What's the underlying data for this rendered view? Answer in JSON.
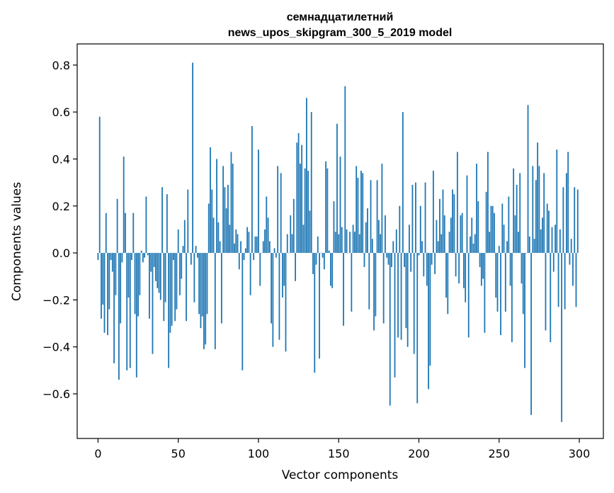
{
  "chart_data": {
    "type": "bar",
    "title_line1": "семнадцатилетний",
    "title_line2": "news_upos_skipgram_300_5_2019 model",
    "xlabel": "Vector components",
    "ylabel": "Components values",
    "xlim": [
      -13,
      315
    ],
    "ylim": [
      -0.79,
      0.89
    ],
    "x_ticks": [
      0,
      50,
      100,
      150,
      200,
      250,
      300
    ],
    "y_ticks": [
      -0.6,
      -0.4,
      -0.2,
      0.0,
      0.2,
      0.4,
      0.6,
      0.8
    ],
    "y_tick_labels": [
      "−0.6",
      "−0.4",
      "−0.2",
      "0.0",
      "0.2",
      "0.4",
      "0.6",
      "0.8"
    ],
    "x_tick_labels": [
      "0",
      "50",
      "100",
      "150",
      "200",
      "250",
      "300"
    ],
    "grid": false,
    "bar_color": "#1f77b4",
    "values": [
      -0.03,
      0.58,
      -0.28,
      -0.22,
      -0.34,
      0.17,
      -0.35,
      -0.24,
      -0.03,
      -0.08,
      -0.47,
      -0.18,
      0.23,
      -0.54,
      -0.3,
      -0.04,
      0.41,
      0.17,
      -0.5,
      -0.19,
      -0.49,
      -0.03,
      0.17,
      -0.26,
      -0.53,
      -0.27,
      -0.18,
      0.01,
      -0.04,
      -0.02,
      0.24,
      -0.01,
      -0.28,
      -0.08,
      -0.43,
      -0.06,
      -0.12,
      -0.15,
      -0.17,
      -0.2,
      0.28,
      -0.29,
      -0.21,
      0.25,
      -0.49,
      -0.34,
      -0.31,
      -0.03,
      -0.29,
      -0.24,
      0.1,
      -0.18,
      -0.11,
      0.03,
      0.14,
      -0.29,
      0.27,
      0.0,
      -0.05,
      0.81,
      -0.21,
      0.03,
      -0.02,
      -0.26,
      -0.32,
      -0.27,
      -0.41,
      -0.39,
      -0.26,
      0.21,
      0.45,
      0.27,
      0.15,
      -0.41,
      0.4,
      0.13,
      0.05,
      -0.3,
      0.37,
      0.28,
      0.19,
      0.29,
      0.12,
      0.43,
      0.38,
      0.04,
      0.1,
      0.08,
      -0.07,
      0.05,
      -0.5,
      -0.03,
      0.02,
      0.11,
      0.09,
      -0.18,
      0.54,
      -0.03,
      0.07,
      0.07,
      0.44,
      -0.14,
      0.0,
      0.05,
      0.1,
      0.24,
      0.15,
      0.05,
      -0.3,
      -0.4,
      0.02,
      -0.02,
      0.37,
      -0.37,
      0.34,
      -0.19,
      -0.14,
      -0.42,
      0.08,
      0.0,
      0.16,
      0.08,
      0.23,
      -0.12,
      0.47,
      0.51,
      0.38,
      0.46,
      0.12,
      0.36,
      0.66,
      0.35,
      0.18,
      0.6,
      -0.09,
      -0.51,
      -0.05,
      0.07,
      -0.45,
      0.0,
      -0.02,
      -0.07,
      0.39,
      0.36,
      0.01,
      -0.14,
      -0.15,
      0.22,
      0.09,
      0.55,
      0.08,
      0.41,
      0.11,
      -0.31,
      0.71,
      0.1,
      0.0,
      0.09,
      -0.25,
      0.12,
      0.09,
      0.37,
      0.32,
      0.08,
      0.35,
      0.34,
      -0.06,
      0.13,
      0.19,
      -0.24,
      0.31,
      0.06,
      -0.33,
      -0.27,
      0.31,
      0.14,
      0.08,
      0.38,
      -0.3,
      0.16,
      -0.02,
      -0.05,
      -0.65,
      -0.06,
      0.05,
      -0.53,
      0.1,
      -0.36,
      0.2,
      -0.37,
      0.6,
      -0.06,
      -0.32,
      -0.4,
      0.12,
      -0.08,
      0.29,
      -0.43,
      0.3,
      -0.64,
      -0.01,
      0.2,
      0.05,
      -0.1,
      0.3,
      -0.14,
      -0.58,
      -0.48,
      -0.05,
      0.35,
      -0.09,
      0.14,
      0.05,
      0.23,
      0.08,
      0.27,
      0.16,
      -0.19,
      -0.26,
      0.09,
      0.15,
      0.27,
      0.25,
      -0.1,
      0.43,
      -0.13,
      0.16,
      0.17,
      -0.15,
      -0.21,
      0.33,
      -0.36,
      0.07,
      0.15,
      0.04,
      0.08,
      0.38,
      0.22,
      -0.06,
      -0.14,
      -0.11,
      -0.34,
      0.26,
      0.43,
      0.09,
      0.2,
      0.2,
      0.17,
      -0.19,
      -0.25,
      0.03,
      -0.35,
      0.21,
      0.12,
      -0.25,
      0.05,
      0.24,
      -0.14,
      -0.38,
      0.36,
      0.16,
      0.29,
      0.09,
      0.34,
      -0.13,
      -0.26,
      -0.49,
      0.0,
      0.63,
      0.07,
      -0.69,
      0.37,
      0.06,
      0.31,
      0.47,
      0.37,
      0.1,
      0.15,
      0.34,
      -0.33,
      0.21,
      0.18,
      -0.38,
      0.11,
      -0.08,
      0.12,
      0.44,
      -0.23,
      0.1,
      -0.72,
      0.28,
      -0.24,
      0.34,
      0.43,
      -0.05,
      0.06,
      -0.14,
      0.28,
      -0.23,
      0.27
    ]
  }
}
